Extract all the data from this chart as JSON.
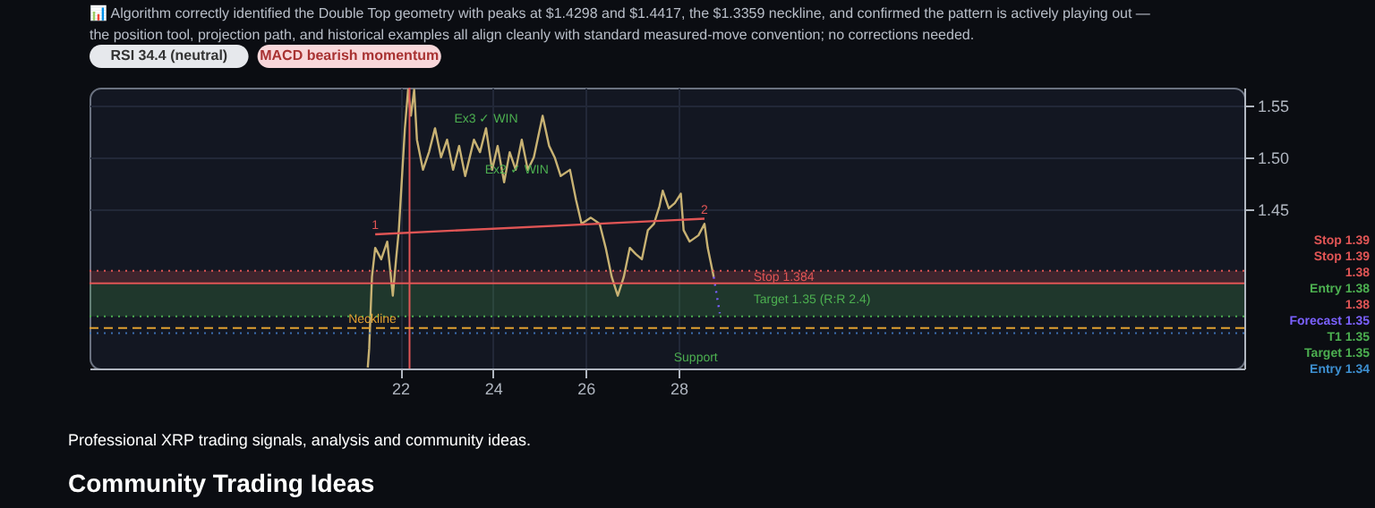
{
  "chart_data": {
    "type": "line",
    "title": "📊 Algorithm correctly identified the Double Top geometry with peaks at $1.4298 and $1.4417, the $1.3359 neckline, and confirmed the pattern is actively playing out — the position tool, projection path, and historical examples all align cleanly with standard measured-move convention; no corrections needed.",
    "xlim": [
      15.3,
      40.2
    ],
    "xticks": [
      22,
      24,
      26,
      28
    ],
    "ylim": [
      1.297,
      1.567
    ],
    "yticks": [
      1.45,
      {
        "value": 1.5,
        "label": "1.50"
      },
      1.55
    ],
    "grid": true,
    "marker": "none",
    "series": [
      {
        "color": "#c8b273",
        "line_style": "solid",
        "x": [
          21.3,
          21.33,
          21.39,
          21.46,
          21.59,
          21.72,
          21.84,
          21.91,
          21.97,
          22.1,
          22.17,
          22.23,
          22.3,
          22.36,
          22.49,
          22.62,
          22.75,
          22.88,
          23.01,
          23.14,
          23.27,
          23.4,
          23.59,
          23.72,
          23.85,
          23.98,
          24.1,
          24.24,
          24.36,
          24.49,
          24.62,
          24.75,
          24.88,
          25.07,
          25.21,
          25.33,
          25.46,
          25.66,
          25.79,
          25.91,
          26.11,
          26.3,
          26.43,
          26.56,
          26.69,
          26.82,
          26.95,
          27.08,
          27.21,
          27.34,
          27.47,
          27.59,
          27.66,
          27.79,
          27.92,
          28.05,
          28.11,
          28.24,
          28.43,
          28.56,
          28.63,
          28.76
        ],
        "values": [
          1.298,
          1.316,
          1.385,
          1.413,
          1.402,
          1.419,
          1.367,
          1.402,
          1.43,
          1.528,
          1.565,
          1.54,
          1.565,
          1.517,
          1.488,
          1.505,
          1.528,
          1.5,
          1.517,
          1.488,
          1.511,
          1.482,
          1.517,
          1.505,
          1.528,
          1.488,
          1.511,
          1.476,
          1.505,
          1.488,
          1.517,
          1.488,
          1.5,
          1.54,
          1.511,
          1.5,
          1.482,
          1.488,
          1.459,
          1.436,
          1.442,
          1.436,
          1.413,
          1.385,
          1.367,
          1.385,
          1.413,
          1.407,
          1.402,
          1.43,
          1.436,
          1.453,
          1.468,
          1.451,
          1.456,
          1.465,
          1.43,
          1.419,
          1.425,
          1.436,
          1.413,
          1.385
        ]
      },
      {
        "color": "#e05555",
        "line_style": "solid",
        "x": [
          21.46,
          28.56
        ],
        "values": [
          1.426,
          1.441
        ]
      },
      {
        "color": "#7b61ff",
        "line_style": "dotted",
        "x": [
          28.76,
          28.89
        ],
        "values": [
          1.385,
          1.35
        ]
      }
    ],
    "ref_lines": [
      {
        "axis": "x",
        "value": 22.2,
        "label": null,
        "color": "#e05555",
        "line_style": "solid"
      },
      {
        "axis": "y",
        "value": 1.391,
        "label": null,
        "color": "#e05555",
        "line_style": "dotted"
      },
      {
        "axis": "y",
        "value": 1.379,
        "label": null,
        "color": "#e05555",
        "line_style": "solid"
      },
      {
        "axis": "y",
        "value": 1.347,
        "label": null,
        "color": "#4caf50",
        "line_style": "dotted"
      },
      {
        "axis": "y",
        "value": 1.3359,
        "label": null,
        "color": "#e0a030",
        "line_style": "dashed"
      },
      {
        "axis": "y",
        "value": 1.331,
        "label": null,
        "color": "#3d6fb0",
        "line_style": "dotted"
      }
    ],
    "bands": [
      {
        "axis": "y",
        "from": 1.379,
        "to": 1.391,
        "label": "Stop 1.384",
        "color": "#e05555"
      },
      {
        "axis": "y",
        "from": 1.347,
        "to": 1.379,
        "label": "Target 1.35 (R:R 2.4)",
        "color": "#4caf50"
      }
    ],
    "annotations": [
      {
        "text": "1",
        "x": 21.46,
        "y": 1.426
      },
      {
        "text": "2",
        "x": 28.56,
        "y": 1.441
      },
      {
        "text": "Ex3 ✓ WIN",
        "x": 23.85,
        "y": 1.528
      },
      {
        "text": "Neckline",
        "x": 21.4,
        "y": 1.3359
      },
      "Ex2 ✓ WIN",
      "Support",
      "RSI 34.4 (neutral)",
      "MACD bearish momentum",
      "Stop 1.39",
      "Stop 1.39",
      "1.38",
      "Entry 1.38",
      "1.38",
      "Forecast 1.35",
      "T1 1.35",
      "Target 1.35",
      "Entry 1.34",
      "Professional XRP trading signals, analysis and community ideas.",
      "Community Trading Ideas"
    ]
  }
}
